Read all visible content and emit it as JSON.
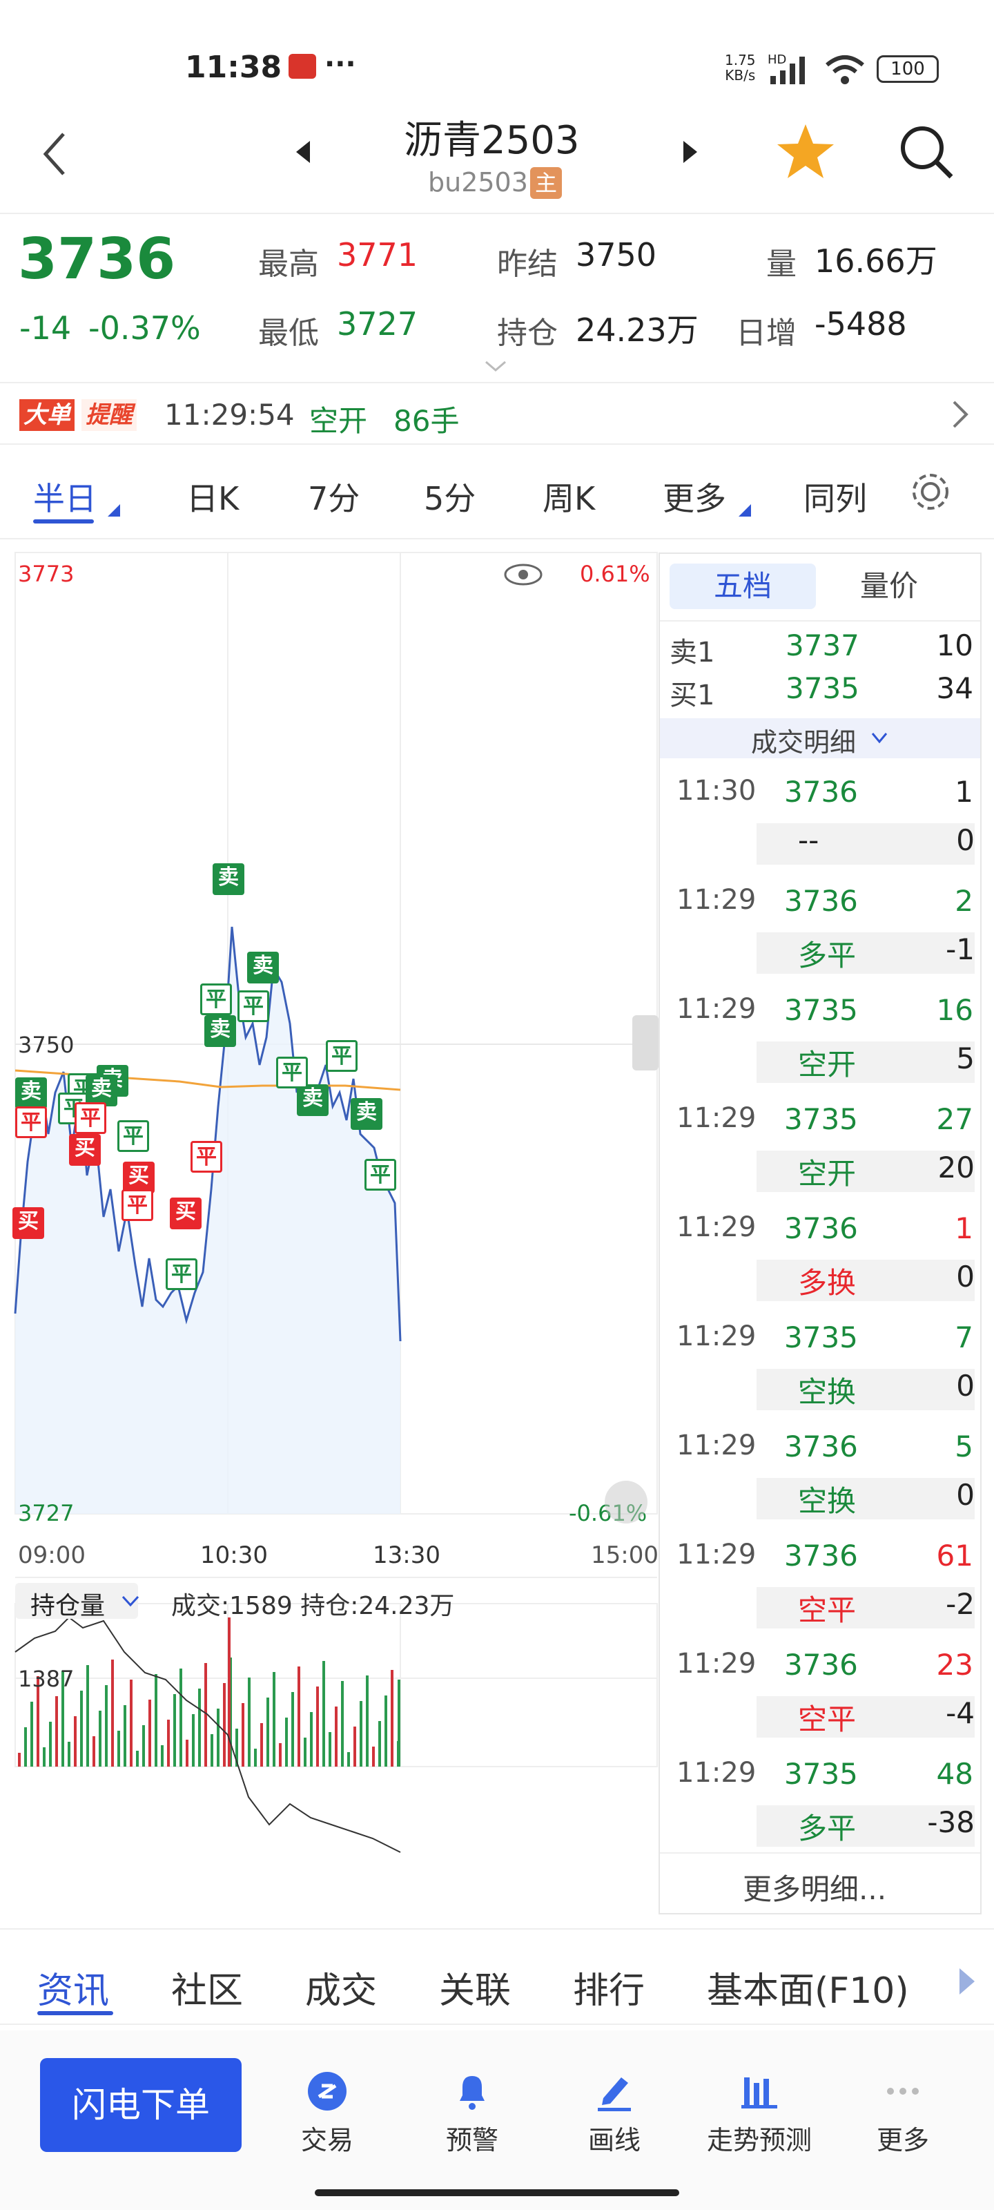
{
  "status": {
    "time": "11:38",
    "net_speed": "1.75",
    "net_unit": "KB/s",
    "hd": "HD",
    "battery": "100"
  },
  "header": {
    "title": "沥青2503",
    "code": "bu2503",
    "badge": "主"
  },
  "quote": {
    "last": "3736",
    "change": "-14",
    "change_pct": "-0.37%",
    "high_label": "最高",
    "high": "3771",
    "low_label": "最低",
    "low": "3727",
    "prev_settle_label": "昨结",
    "prev_settle": "3750",
    "oi_label": "持仓",
    "oi": "24.23万",
    "vol_label": "量",
    "vol": "16.66万",
    "daily_inc_label": "日增",
    "daily_inc": "-5488"
  },
  "alert": {
    "tag1": "大单",
    "tag2": "提醒",
    "time": "11:29:54",
    "type": "空开",
    "qty": "86手"
  },
  "tabs": [
    "半日",
    "日K",
    "7分",
    "5分",
    "周K",
    "更多",
    "同列"
  ],
  "chart": {
    "top_price": "3773",
    "top_pct": "0.61%",
    "mid_price": "3750",
    "bot_price": "3727",
    "bot_pct": "-0.61%",
    "times": [
      "09:00",
      "10:30",
      "13:30",
      "15:00"
    ],
    "sub_selector": "持仓量",
    "sub_info": "成交:1589 持仓:24.23万",
    "sub_max": "1387",
    "marks": [
      {
        "t": "卖",
        "s": "mg"
      },
      {
        "t": "卖",
        "s": "mg"
      },
      {
        "t": "平",
        "s": "mgo"
      },
      {
        "t": "平",
        "s": "mgo"
      },
      {
        "t": "卖",
        "s": "mg"
      },
      {
        "t": "卖",
        "s": "mg"
      },
      {
        "t": "卖",
        "s": "mg"
      },
      {
        "t": "卖",
        "s": "mg"
      },
      {
        "t": "平",
        "s": "mgo"
      },
      {
        "t": "平",
        "s": "mgo"
      },
      {
        "t": "平",
        "s": "mgo"
      },
      {
        "t": "卖",
        "s": "mg"
      },
      {
        "t": "平",
        "s": "mgo"
      },
      {
        "t": "卖",
        "s": "mg"
      },
      {
        "t": "平",
        "s": "mgo"
      },
      {
        "t": "平",
        "s": "mgo"
      },
      {
        "t": "平",
        "s": "mgo"
      },
      {
        "t": "平",
        "s": "mro"
      },
      {
        "t": "平",
        "s": "mro"
      },
      {
        "t": "买",
        "s": "mr"
      },
      {
        "t": "买",
        "s": "mr"
      },
      {
        "t": "买",
        "s": "mr"
      },
      {
        "t": "平",
        "s": "mro"
      },
      {
        "t": "平",
        "s": "mro"
      },
      {
        "t": "买",
        "s": "mr"
      }
    ]
  },
  "side": {
    "tab_active": "五档",
    "tab2": "量价",
    "ask_label": "卖1",
    "ask_price": "3737",
    "ask_vol": "10",
    "bid_label": "买1",
    "bid_price": "3735",
    "bid_vol": "34",
    "detail_title": "成交明细",
    "trades": [
      {
        "time": "11:30",
        "price": "3736",
        "vol": "1",
        "vc": "#222",
        "type": "--",
        "tc": "#222",
        "delta": "0"
      },
      {
        "time": "11:29",
        "price": "3736",
        "vol": "2",
        "vc": "#1a8a3c",
        "type": "多平",
        "tc": "#1a8a3c",
        "delta": "-1"
      },
      {
        "time": "11:29",
        "price": "3735",
        "vol": "16",
        "vc": "#1a8a3c",
        "type": "空开",
        "tc": "#1a8a3c",
        "delta": "5"
      },
      {
        "time": "11:29",
        "price": "3735",
        "vol": "27",
        "vc": "#1a8a3c",
        "type": "空开",
        "tc": "#1a8a3c",
        "delta": "20"
      },
      {
        "time": "11:29",
        "price": "3736",
        "vol": "1",
        "vc": "#e8272d",
        "type": "多换",
        "tc": "#e8272d",
        "delta": "0"
      },
      {
        "time": "11:29",
        "price": "3735",
        "vol": "7",
        "vc": "#1a8a3c",
        "type": "空换",
        "tc": "#1a8a3c",
        "delta": "0"
      },
      {
        "time": "11:29",
        "price": "3736",
        "vol": "5",
        "vc": "#1a8a3c",
        "type": "空换",
        "tc": "#1a8a3c",
        "delta": "0"
      },
      {
        "time": "11:29",
        "price": "3736",
        "vol": "61",
        "vc": "#e8272d",
        "type": "空平",
        "tc": "#e8272d",
        "delta": "-2"
      },
      {
        "time": "11:29",
        "price": "3736",
        "vol": "23",
        "vc": "#e8272d",
        "type": "空平",
        "tc": "#e8272d",
        "delta": "-4"
      },
      {
        "time": "11:29",
        "price": "3735",
        "vol": "48",
        "vc": "#1a8a3c",
        "type": "多平",
        "tc": "#1a8a3c",
        "delta": "-38"
      }
    ],
    "more": "更多明细..."
  },
  "bottom_tabs": [
    "资讯",
    "社区",
    "成交",
    "关联",
    "排行",
    "基本面(F10)"
  ],
  "footer": {
    "flash": "闪电下单",
    "items": [
      "交易",
      "预警",
      "画线",
      "走势预测",
      "更多"
    ]
  },
  "colors": {
    "up": "#e8272d",
    "down": "#1a8a3c",
    "accent": "#2f55d4"
  }
}
